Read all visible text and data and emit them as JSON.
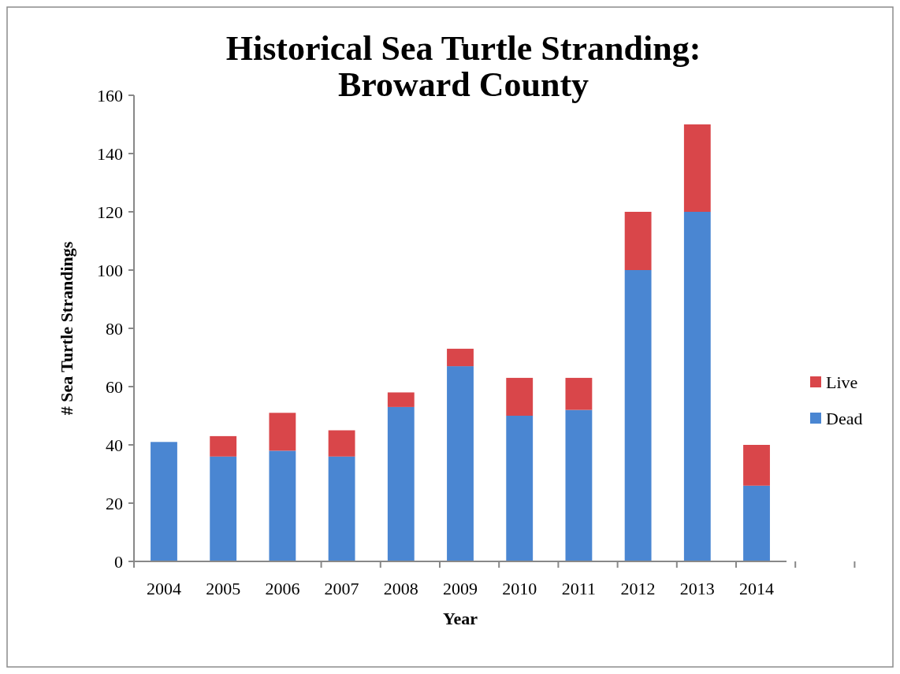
{
  "chart_data": {
    "type": "bar",
    "title": "Historical Sea Turtle Stranding: Broward County",
    "xlabel": "Year",
    "ylabel": "# Sea Turtle Strandings",
    "categories": [
      "2004",
      "2005",
      "2006",
      "2007",
      "2008",
      "2009",
      "2010",
      "2011",
      "2012",
      "2013",
      "2014"
    ],
    "stacked": true,
    "series": [
      {
        "name": "Dead",
        "color": "#4a86d2",
        "values": [
          41,
          36,
          38,
          36,
          53,
          67,
          50,
          52,
          100,
          120,
          26
        ]
      },
      {
        "name": "Live",
        "color": "#d9464a",
        "values": [
          0,
          7,
          13,
          9,
          5,
          6,
          13,
          11,
          20,
          30,
          14
        ]
      }
    ],
    "ylim": [
      0,
      160
    ],
    "yticks": [
      0,
      20,
      40,
      60,
      80,
      100,
      120,
      140,
      160
    ],
    "grid": false,
    "legend": "right"
  }
}
